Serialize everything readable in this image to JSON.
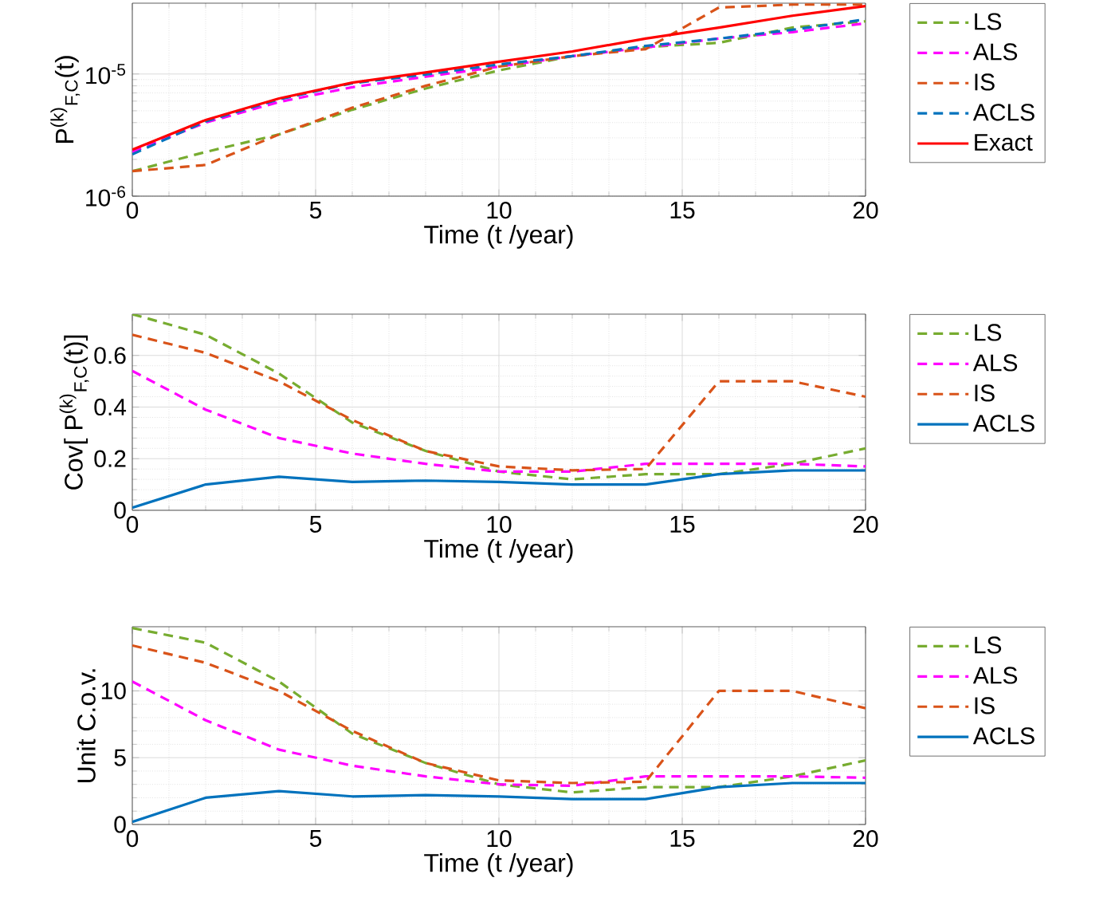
{
  "chart_data": [
    {
      "type": "line",
      "xlabel": "Time (t /year)",
      "ylabel": "P$^{(k)}$$_{F,C}$(t)",
      "log": "y",
      "grid": true,
      "legend": "right",
      "x": [
        0,
        2,
        4,
        6,
        8,
        10,
        12,
        14,
        16,
        18,
        20
      ],
      "xlim": [
        0,
        20
      ],
      "xticks": [
        0,
        5,
        10,
        15,
        20
      ],
      "ylim": [
        1e-06,
        3.8e-05
      ],
      "yticks": [
        {
          "value": 1e-06,
          "label": "10$^{-6}$"
        },
        {
          "value": 1e-05,
          "label": "10$^{-5}$"
        }
      ],
      "series": [
        {
          "name": "LS",
          "color": "#77ac30",
          "line_style": "dashed",
          "values": [
            1.6e-06,
            2.3e-06,
            3.2e-06,
            5.1e-06,
            7.6e-06,
            1.07e-05,
            1.4e-05,
            1.66e-05,
            1.8e-05,
            2.4e-05,
            2.7e-05
          ]
        },
        {
          "name": "ALS",
          "color": "#ff00ff",
          "line_style": "dashed",
          "values": [
            2.3e-06,
            4e-06,
            5.9e-06,
            7.8e-06,
            9.5e-06,
            1.15e-05,
            1.4e-05,
            1.65e-05,
            1.95e-05,
            2.2e-05,
            2.6e-05
          ]
        },
        {
          "name": "IS",
          "color": "#d95319",
          "line_style": "dashed",
          "values": [
            1.6e-06,
            1.8e-06,
            3.2e-06,
            5.3e-06,
            8e-06,
            1.15e-05,
            1.4e-05,
            1.6e-05,
            3.5e-05,
            3.7e-05,
            3.7e-05
          ]
        },
        {
          "name": "ACLS",
          "color": "#0072bd",
          "line_style": "dashed",
          "values": [
            2.2e-06,
            4.1e-06,
            6.2e-06,
            8.4e-06,
            9.9e-06,
            1.2e-05,
            1.4e-05,
            1.7e-05,
            1.95e-05,
            2.3e-05,
            2.8e-05
          ]
        },
        {
          "name": "Exact",
          "color": "#ff0000",
          "line_style": "solid",
          "values": [
            2.4e-06,
            4.2e-06,
            6.3e-06,
            8.5e-06,
            1.03e-05,
            1.26e-05,
            1.53e-05,
            1.95e-05,
            2.4e-05,
            3e-05,
            3.6e-05
          ]
        }
      ]
    },
    {
      "type": "line",
      "xlabel": "Time (t /year)",
      "ylabel": "Cov[ P$^{(k)}$$_{F,C}$(t)]",
      "grid": true,
      "legend": "right",
      "x": [
        0,
        2,
        4,
        6,
        8,
        10,
        12,
        14,
        16,
        18,
        20
      ],
      "xlim": [
        0,
        20
      ],
      "xticks": [
        0,
        5,
        10,
        15,
        20
      ],
      "ylim": [
        0,
        0.76
      ],
      "yticks": [
        0,
        0.2,
        0.4,
        0.6
      ],
      "series": [
        {
          "name": "LS",
          "color": "#77ac30",
          "line_style": "dashed",
          "values": [
            0.76,
            0.68,
            0.53,
            0.34,
            0.23,
            0.15,
            0.12,
            0.14,
            0.14,
            0.18,
            0.24
          ]
        },
        {
          "name": "ALS",
          "color": "#ff00ff",
          "line_style": "dashed",
          "values": [
            0.54,
            0.39,
            0.28,
            0.22,
            0.18,
            0.15,
            0.15,
            0.18,
            0.18,
            0.18,
            0.17
          ]
        },
        {
          "name": "IS",
          "color": "#d95319",
          "line_style": "dashed",
          "values": [
            0.68,
            0.61,
            0.5,
            0.35,
            0.23,
            0.17,
            0.155,
            0.16,
            0.5,
            0.5,
            0.44
          ]
        },
        {
          "name": "ACLS",
          "color": "#0072bd",
          "line_style": "solid",
          "values": [
            0.01,
            0.1,
            0.13,
            0.11,
            0.115,
            0.11,
            0.1,
            0.1,
            0.14,
            0.155,
            0.155
          ]
        }
      ]
    },
    {
      "type": "line",
      "xlabel": "Time (t /year)",
      "ylabel": "Unit C.o.v.",
      "grid": true,
      "legend": "right",
      "x": [
        0,
        2,
        4,
        6,
        8,
        10,
        12,
        14,
        16,
        18,
        20
      ],
      "xlim": [
        0,
        20
      ],
      "xticks": [
        0,
        5,
        10,
        15,
        20
      ],
      "ylim": [
        0,
        14.8
      ],
      "yticks": [
        0,
        5,
        10
      ],
      "series": [
        {
          "name": "LS",
          "color": "#77ac30",
          "line_style": "dashed",
          "values": [
            14.7,
            13.6,
            10.7,
            6.8,
            4.6,
            3.0,
            2.4,
            2.8,
            2.8,
            3.6,
            4.8
          ]
        },
        {
          "name": "ALS",
          "color": "#ff00ff",
          "line_style": "dashed",
          "values": [
            10.7,
            7.8,
            5.6,
            4.4,
            3.6,
            3.0,
            2.9,
            3.6,
            3.6,
            3.6,
            3.5
          ]
        },
        {
          "name": "IS",
          "color": "#d95319",
          "line_style": "dashed",
          "values": [
            13.4,
            12.1,
            10.0,
            7.0,
            4.6,
            3.3,
            3.1,
            3.2,
            10.0,
            10.0,
            8.7
          ]
        },
        {
          "name": "ACLS",
          "color": "#0072bd",
          "line_style": "solid",
          "values": [
            0.2,
            2.0,
            2.5,
            2.1,
            2.2,
            2.1,
            1.9,
            1.9,
            2.8,
            3.1,
            3.1
          ]
        }
      ]
    }
  ]
}
